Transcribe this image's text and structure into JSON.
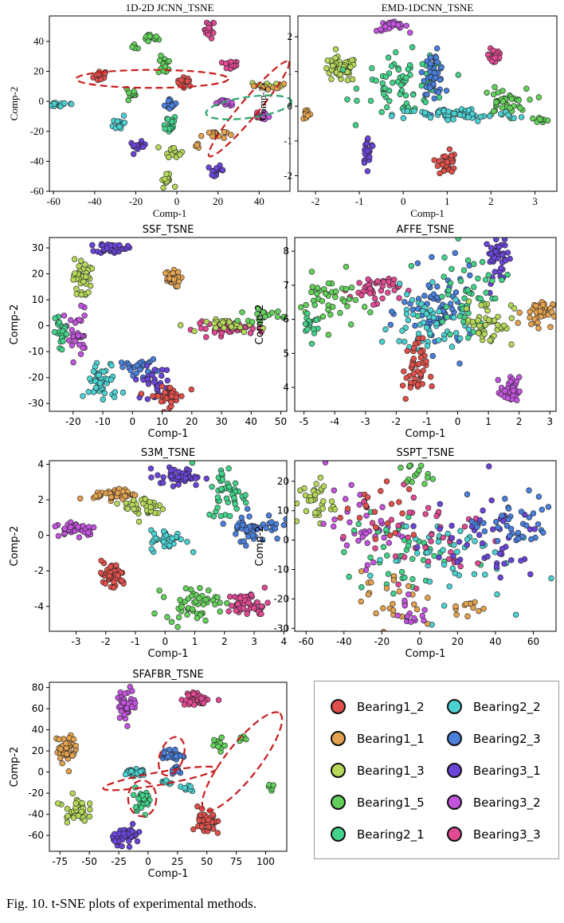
{
  "caption": "Fig. 10.   t-SNE plots of experimental methods.",
  "classes": [
    {
      "name": "Bearing1_2",
      "color": "#e0504a"
    },
    {
      "name": "Bearing1_1",
      "color": "#e3a24f"
    },
    {
      "name": "Bearing1_3",
      "color": "#b5d85a"
    },
    {
      "name": "Bearing1_5",
      "color": "#62d05b"
    },
    {
      "name": "Bearing2_1",
      "color": "#43d28a"
    },
    {
      "name": "Bearing2_2",
      "color": "#4cd1d2"
    },
    {
      "name": "Bearing2_3",
      "color": "#4a7fdb"
    },
    {
      "name": "Bearing3_1",
      "color": "#6a45d8"
    },
    {
      "name": "Bearing3_2",
      "color": "#c254dd"
    },
    {
      "name": "Bearing3_3",
      "color": "#e04a92"
    }
  ],
  "chart_data": [
    {
      "type": "scatter",
      "title": "1D-2D JCNN_TSNE",
      "xlabel": "Comp-1",
      "ylabel": "Comp-2",
      "xlim": [
        -62,
        55
      ],
      "ylim": [
        -60,
        57
      ],
      "xticks": [
        -60,
        -40,
        -20,
        0,
        20,
        40
      ],
      "yticks": [
        -60,
        -40,
        -20,
        0,
        20,
        40
      ],
      "clusters": [
        {
          "c": "Bearing1_2",
          "x": -37,
          "y": 17,
          "sx": 1.8,
          "sy": 2,
          "n": 18
        },
        {
          "c": "Bearing1_2",
          "x": 4,
          "y": 13,
          "sx": 2,
          "sy": 1.5,
          "n": 16
        },
        {
          "c": "Bearing3_3",
          "x": 16,
          "y": 48,
          "sx": 1.2,
          "sy": 3,
          "n": 18
        },
        {
          "c": "Bearing3_3",
          "x": 26,
          "y": 24,
          "sx": 2,
          "sy": 1.5,
          "n": 16
        },
        {
          "c": "Bearing3_3",
          "x": 40,
          "y": -10,
          "sx": 1.5,
          "sy": 1,
          "n": 8
        },
        {
          "c": "Bearing1_5",
          "x": -13,
          "y": 42,
          "sx": 2,
          "sy": 1.5,
          "n": 16
        },
        {
          "c": "Bearing1_5",
          "x": -20,
          "y": 36,
          "sx": 1,
          "sy": 1,
          "n": 5
        },
        {
          "c": "Bearing1_5",
          "x": -6,
          "y": 24,
          "sx": 1.5,
          "sy": 3,
          "n": 16
        },
        {
          "c": "Bearing1_5",
          "x": -22,
          "y": 5,
          "sx": 1,
          "sy": 3,
          "n": 12
        },
        {
          "c": "Bearing2_1",
          "x": -4,
          "y": -15,
          "sx": 2,
          "sy": 3,
          "n": 18
        },
        {
          "c": "Bearing2_2",
          "x": -56,
          "y": -2,
          "sx": 4,
          "sy": 1,
          "n": 16
        },
        {
          "c": "Bearing2_2",
          "x": -28,
          "y": -14,
          "sx": 1.5,
          "sy": 3,
          "n": 14
        },
        {
          "c": "Bearing1_3",
          "x": -2,
          "y": -33,
          "sx": 2,
          "sy": 2,
          "n": 14
        },
        {
          "c": "Bearing1_3",
          "x": -5,
          "y": -53,
          "sx": 1.5,
          "sy": 2,
          "n": 14
        },
        {
          "c": "Bearing1_3",
          "x": 44,
          "y": 11,
          "sx": 4,
          "sy": 1,
          "n": 14
        },
        {
          "c": "Bearing1_1",
          "x": 18,
          "y": -22,
          "sx": 3,
          "sy": 1.5,
          "n": 16
        },
        {
          "c": "Bearing1_1",
          "x": 10,
          "y": -30,
          "sx": 1,
          "sy": 1,
          "n": 4
        },
        {
          "c": "Bearing1_1",
          "x": 46,
          "y": 10,
          "sx": 3,
          "sy": 1,
          "n": 10
        },
        {
          "c": "Bearing2_3",
          "x": -3,
          "y": -2,
          "sx": 1.5,
          "sy": 2,
          "n": 14
        },
        {
          "c": "Bearing3_1",
          "x": -19,
          "y": -30,
          "sx": 2,
          "sy": 1.5,
          "n": 16
        },
        {
          "c": "Bearing3_1",
          "x": 19,
          "y": -46,
          "sx": 2,
          "sy": 1.5,
          "n": 16
        },
        {
          "c": "Bearing3_2",
          "x": 24,
          "y": -1,
          "sx": 3,
          "sy": 1,
          "n": 14
        },
        {
          "c": "Bearing3_2",
          "x": 42,
          "y": -10,
          "sx": 1.5,
          "sy": 1,
          "n": 8
        }
      ],
      "ellipses": [
        {
          "cx": -12,
          "cy": 15,
          "rx": 37,
          "ry": 6,
          "rot": 0,
          "color": "#c81e1e"
        },
        {
          "cx": 35,
          "cy": -5,
          "rx": 30,
          "ry": 6,
          "rot": -50,
          "color": "#c81e1e"
        },
        {
          "cx": 35,
          "cy": -4,
          "rx": 21,
          "ry": 7,
          "rot": -8,
          "color": "#2aa66b"
        }
      ]
    },
    {
      "type": "scatter",
      "title": "EMD-1DCNN_TSNE",
      "xlabel": "Comp-1",
      "ylabel": "Comp-2",
      "xlim": [
        -2.4,
        3.5
      ],
      "ylim": [
        -2.45,
        2.6
      ],
      "xticks": [
        -2,
        -1,
        0,
        1,
        2,
        3
      ],
      "yticks": [
        -2,
        -1,
        0,
        1,
        2
      ],
      "clusters": [
        {
          "c": "Bearing3_2",
          "x": -0.25,
          "y": 2.3,
          "sx": 0.18,
          "sy": 0.07,
          "n": 26
        },
        {
          "c": "Bearing3_3",
          "x": 2.1,
          "y": 1.5,
          "sx": 0.08,
          "sy": 0.2,
          "n": 26
        },
        {
          "c": "Bearing1_3",
          "x": -1.45,
          "y": 1.05,
          "sx": 0.2,
          "sy": 0.18,
          "n": 50
        },
        {
          "c": "Bearing2_1",
          "x": 0.05,
          "y": 0.6,
          "sx": 0.5,
          "sy": 0.45,
          "n": 70
        },
        {
          "c": "Bearing2_3",
          "x": 0.7,
          "y": 0.95,
          "sx": 0.12,
          "sy": 0.3,
          "n": 50
        },
        {
          "c": "Bearing1_5",
          "x": 2.3,
          "y": 0.1,
          "sx": 0.25,
          "sy": 0.2,
          "n": 40
        },
        {
          "c": "Bearing1_5",
          "x": 3.1,
          "y": -0.4,
          "sx": 0.15,
          "sy": 0.05,
          "n": 8
        },
        {
          "c": "Bearing2_2",
          "x": 1.2,
          "y": -0.25,
          "sx": 0.7,
          "sy": 0.1,
          "n": 60
        },
        {
          "c": "Bearing1_1",
          "x": -2.2,
          "y": -0.2,
          "sx": 0.05,
          "sy": 0.1,
          "n": 10
        },
        {
          "c": "Bearing3_1",
          "x": -0.8,
          "y": -1.3,
          "sx": 0.07,
          "sy": 0.2,
          "n": 22
        },
        {
          "c": "Bearing1_2",
          "x": 1.0,
          "y": -1.6,
          "sx": 0.1,
          "sy": 0.2,
          "n": 30
        }
      ],
      "ellipses": []
    },
    {
      "type": "scatter",
      "title": "SSF_TSNE",
      "xlabel": "Comp-1",
      "ylabel": "Comp-2",
      "xlim": [
        -28,
        52
      ],
      "ylim": [
        -33,
        34
      ],
      "xticks": [
        -20,
        -10,
        0,
        10,
        20,
        30,
        40,
        50
      ],
      "yticks": [
        -30,
        -20,
        -10,
        0,
        10,
        20,
        30
      ],
      "clusters": [
        {
          "c": "Bearing3_1",
          "x": -7,
          "y": 30,
          "sx": 2.5,
          "sy": 1,
          "n": 40
        },
        {
          "c": "Bearing1_1",
          "x": 13,
          "y": 18,
          "sx": 1.5,
          "sy": 1.5,
          "n": 40
        },
        {
          "c": "Bearing1_3",
          "x": -17,
          "y": 18,
          "sx": 1.5,
          "sy": 4,
          "n": 35
        },
        {
          "c": "Bearing3_2",
          "x": -19,
          "y": -3,
          "sx": 2,
          "sy": 5,
          "n": 35
        },
        {
          "c": "Bearing2_1",
          "x": -24,
          "y": -3,
          "sx": 1,
          "sy": 4,
          "n": 20
        },
        {
          "c": "Bearing2_2",
          "x": -10,
          "y": -22,
          "sx": 3,
          "sy": 4,
          "n": 45
        },
        {
          "c": "Bearing2_3",
          "x": 2,
          "y": -16,
          "sx": 3,
          "sy": 1.5,
          "n": 25
        },
        {
          "c": "Bearing3_1",
          "x": 7,
          "y": -22,
          "sx": 3,
          "sy": 3,
          "n": 30
        },
        {
          "c": "Bearing1_2",
          "x": 12,
          "y": -27,
          "sx": 3,
          "sy": 2,
          "n": 35
        },
        {
          "c": "Bearing3_3",
          "x": 33,
          "y": -1,
          "sx": 6,
          "sy": 1.2,
          "n": 50
        },
        {
          "c": "Bearing1_3",
          "x": 35,
          "y": 0,
          "sx": 5,
          "sy": 1.2,
          "n": 25
        },
        {
          "c": "Bearing1_5",
          "x": 44,
          "y": 4,
          "sx": 4,
          "sy": 1.2,
          "n": 20
        }
      ],
      "ellipses": []
    },
    {
      "type": "scatter",
      "title": "AFFE_TSNE",
      "xlabel": "Comp-1",
      "ylabel": "Comp-2",
      "xlim": [
        -5.3,
        3.2
      ],
      "ylim": [
        3.3,
        8.4
      ],
      "xticks": [
        -5,
        -4,
        -3,
        -2,
        -1,
        0,
        1,
        2,
        3
      ],
      "yticks": [
        4,
        5,
        6,
        7,
        8
      ],
      "clusters": [
        {
          "c": "Bearing3_1",
          "x": 1.3,
          "y": 7.8,
          "sx": 0.2,
          "sy": 0.35,
          "n": 40
        },
        {
          "c": "Bearing3_3",
          "x": -2.7,
          "y": 6.9,
          "sx": 0.4,
          "sy": 0.2,
          "n": 45
        },
        {
          "c": "Bearing1_5",
          "x": -4.2,
          "y": 6.5,
          "sx": 0.5,
          "sy": 0.4,
          "n": 45
        },
        {
          "c": "Bearing2_1",
          "x": -4.8,
          "y": 5.9,
          "sx": 0.15,
          "sy": 0.25,
          "n": 15
        },
        {
          "c": "Bearing2_3",
          "x": -0.6,
          "y": 6.2,
          "sx": 0.6,
          "sy": 0.6,
          "n": 70
        },
        {
          "c": "Bearing2_2",
          "x": -1.0,
          "y": 5.8,
          "sx": 0.6,
          "sy": 0.5,
          "n": 55
        },
        {
          "c": "Bearing2_1",
          "x": 0.3,
          "y": 6.8,
          "sx": 0.6,
          "sy": 0.6,
          "n": 50
        },
        {
          "c": "Bearing1_3",
          "x": 1.0,
          "y": 5.9,
          "sx": 0.4,
          "sy": 0.35,
          "n": 45
        },
        {
          "c": "Bearing1_1",
          "x": 2.6,
          "y": 6.2,
          "sx": 0.25,
          "sy": 0.2,
          "n": 40
        },
        {
          "c": "Bearing1_2",
          "x": -1.4,
          "y": 4.5,
          "sx": 0.2,
          "sy": 0.45,
          "n": 45
        },
        {
          "c": "Bearing3_2",
          "x": 1.7,
          "y": 3.9,
          "sx": 0.15,
          "sy": 0.2,
          "n": 35
        }
      ],
      "ellipses": []
    },
    {
      "type": "scatter",
      "title": "S3M_TSNE",
      "xlabel": "Comp-1",
      "ylabel": "Comp-2",
      "xlim": [
        -3.9,
        4.1
      ],
      "ylim": [
        -5.4,
        4.2
      ],
      "xticks": [
        -3,
        -2,
        -1,
        0,
        1,
        2,
        3,
        4
      ],
      "yticks": [
        -4,
        -2,
        0,
        2,
        4
      ],
      "clusters": [
        {
          "c": "Bearing3_1",
          "x": 0.5,
          "y": 3.3,
          "sx": 0.4,
          "sy": 0.25,
          "n": 45
        },
        {
          "c": "Bearing1_1",
          "x": -1.7,
          "y": 2.3,
          "sx": 0.35,
          "sy": 0.15,
          "n": 40
        },
        {
          "c": "Bearing1_3",
          "x": -0.7,
          "y": 1.6,
          "sx": 0.35,
          "sy": 0.35,
          "n": 40
        },
        {
          "c": "Bearing3_2",
          "x": -3.0,
          "y": 0.4,
          "sx": 0.35,
          "sy": 0.2,
          "n": 45
        },
        {
          "c": "Bearing2_2",
          "x": 0.1,
          "y": -0.3,
          "sx": 0.3,
          "sy": 0.3,
          "n": 40
        },
        {
          "c": "Bearing2_1",
          "x": 2.1,
          "y": 2.4,
          "sx": 0.35,
          "sy": 0.8,
          "n": 45
        },
        {
          "c": "Bearing2_3",
          "x": 3.0,
          "y": 0.5,
          "sx": 0.45,
          "sy": 0.4,
          "n": 50
        },
        {
          "c": "Bearing1_2",
          "x": -1.8,
          "y": -2.3,
          "sx": 0.25,
          "sy": 0.4,
          "n": 45
        },
        {
          "c": "Bearing1_5",
          "x": 0.9,
          "y": -3.8,
          "sx": 0.45,
          "sy": 0.45,
          "n": 50
        },
        {
          "c": "Bearing3_3",
          "x": 2.8,
          "y": -3.9,
          "sx": 0.35,
          "sy": 0.35,
          "n": 50
        }
      ],
      "ellipses": []
    },
    {
      "type": "scatter",
      "title": "SSPT_TSNE",
      "xlabel": "Comp-1",
      "ylabel": "Comp-2",
      "xlim": [
        -66,
        72
      ],
      "ylim": [
        -31,
        27
      ],
      "xticks": [
        -60,
        -40,
        -20,
        0,
        20,
        40,
        60
      ],
      "yticks": [
        -30,
        -20,
        -10,
        0,
        10,
        20
      ],
      "clusters": [
        {
          "c": "Bearing1_3",
          "x": -55,
          "y": 13,
          "sx": 5,
          "sy": 4,
          "n": 35
        },
        {
          "c": "Bearing1_5",
          "x": -3,
          "y": 22,
          "sx": 4,
          "sy": 2,
          "n": 15
        },
        {
          "c": "Bearing3_2",
          "x": -30,
          "y": 5,
          "sx": 10,
          "sy": 6,
          "n": 40
        },
        {
          "c": "Bearing2_1",
          "x": -10,
          "y": -5,
          "sx": 15,
          "sy": 8,
          "n": 45
        },
        {
          "c": "Bearing2_2",
          "x": 10,
          "y": -5,
          "sx": 18,
          "sy": 8,
          "n": 45
        },
        {
          "c": "Bearing3_3",
          "x": 5,
          "y": 2,
          "sx": 20,
          "sy": 8,
          "n": 40
        },
        {
          "c": "Bearing3_1",
          "x": 30,
          "y": 0,
          "sx": 18,
          "sy": 7,
          "n": 45
        },
        {
          "c": "Bearing2_3",
          "x": 50,
          "y": 5,
          "sx": 12,
          "sy": 5,
          "n": 40
        },
        {
          "c": "Bearing1_1",
          "x": -15,
          "y": -20,
          "sx": 8,
          "sy": 5,
          "n": 25
        },
        {
          "c": "Bearing1_1",
          "x": 25,
          "y": -22,
          "sx": 4,
          "sy": 3,
          "n": 12
        },
        {
          "c": "Bearing3_2",
          "x": -5,
          "y": -25,
          "sx": 5,
          "sy": 3,
          "n": 15
        },
        {
          "c": "Bearing1_2",
          "x": -20,
          "y": 10,
          "sx": 10,
          "sy": 5,
          "n": 20
        }
      ],
      "ellipses": []
    },
    {
      "type": "scatter",
      "title": "SFAFBR_TSNE",
      "xlabel": "Comp-1",
      "ylabel": "Comp-2",
      "xlim": [
        -84,
        118
      ],
      "ylim": [
        -75,
        85
      ],
      "xticks": [
        -75,
        -50,
        -25,
        0,
        25,
        50,
        75,
        100
      ],
      "yticks": [
        -60,
        -40,
        -20,
        0,
        20,
        40,
        60,
        80
      ],
      "clusters": [
        {
          "c": "Bearing3_2",
          "x": -18,
          "y": 65,
          "sx": 4,
          "sy": 7,
          "n": 45
        },
        {
          "c": "Bearing3_3",
          "x": 42,
          "y": 69,
          "sx": 7,
          "sy": 3,
          "n": 40
        },
        {
          "c": "Bearing1_1",
          "x": -70,
          "y": 22,
          "sx": 4,
          "sy": 7,
          "n": 45
        },
        {
          "c": "Bearing1_3",
          "x": -62,
          "y": -35,
          "sx": 5,
          "sy": 6,
          "n": 40
        },
        {
          "c": "Bearing2_2",
          "x": -12,
          "y": 0,
          "sx": 5,
          "sy": 2,
          "n": 25
        },
        {
          "c": "Bearing2_2",
          "x": 15,
          "y": -10,
          "sx": 3,
          "sy": 2,
          "n": 8
        },
        {
          "c": "Bearing2_2",
          "x": 35,
          "y": -15,
          "sx": 3,
          "sy": 2,
          "n": 8
        },
        {
          "c": "Bearing2_3",
          "x": 20,
          "y": 16,
          "sx": 4,
          "sy": 3,
          "n": 25
        },
        {
          "c": "Bearing2_3",
          "x": 25,
          "y": 1,
          "sx": 3,
          "sy": 2,
          "n": 12
        },
        {
          "c": "Bearing2_1",
          "x": -5,
          "y": -25,
          "sx": 4,
          "sy": 5,
          "n": 30
        },
        {
          "c": "Bearing1_5",
          "x": 60,
          "y": 25,
          "sx": 3,
          "sy": 4,
          "n": 10
        },
        {
          "c": "Bearing1_5",
          "x": 80,
          "y": 30,
          "sx": 2,
          "sy": 2,
          "n": 5
        },
        {
          "c": "Bearing1_5",
          "x": 105,
          "y": -15,
          "sx": 2,
          "sy": 2,
          "n": 5
        },
        {
          "c": "Bearing1_2",
          "x": 50,
          "y": -48,
          "sx": 4,
          "sy": 7,
          "n": 45
        },
        {
          "c": "Bearing3_1",
          "x": -18,
          "y": -60,
          "sx": 6,
          "sy": 4,
          "n": 45
        }
      ],
      "ellipses": [
        {
          "cx": 80,
          "cy": 10,
          "rx": 52,
          "ry": 16,
          "rot": -52,
          "color": "#c81e1e"
        },
        {
          "cx": 20,
          "cy": 15,
          "rx": 10,
          "ry": 19,
          "rot": 20,
          "color": "#c81e1e"
        },
        {
          "cx": 10,
          "cy": -6,
          "rx": 49,
          "ry": 6,
          "rot": -10,
          "color": "#c81e1e"
        },
        {
          "cx": -5,
          "cy": -25,
          "rx": 12,
          "ry": 17,
          "rot": 0,
          "color": "#c81e1e"
        }
      ]
    }
  ]
}
